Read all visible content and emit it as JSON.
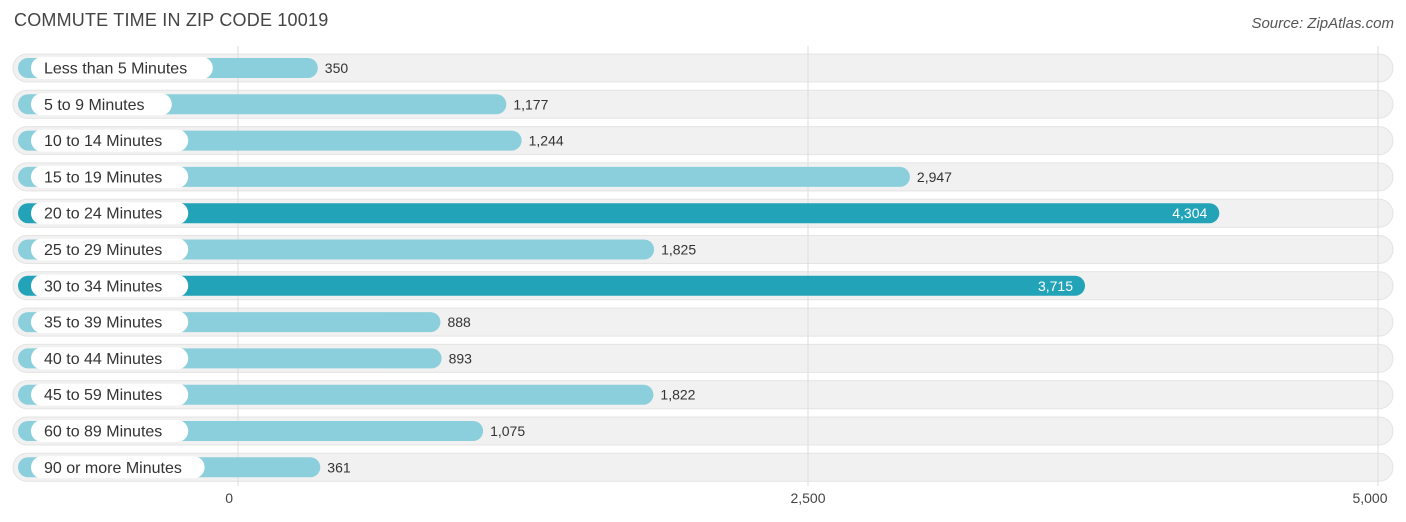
{
  "chart_data": {
    "type": "bar",
    "orientation": "horizontal",
    "title": "COMMUTE TIME IN ZIP CODE 10019",
    "source": "Source: ZipAtlas.com",
    "categories": [
      "Less than 5 Minutes",
      "5 to 9 Minutes",
      "10 to 14 Minutes",
      "15 to 19 Minutes",
      "20 to 24 Minutes",
      "25 to 29 Minutes",
      "30 to 34 Minutes",
      "35 to 39 Minutes",
      "40 to 44 Minutes",
      "45 to 59 Minutes",
      "60 to 89 Minutes",
      "90 or more Minutes"
    ],
    "values": [
      350,
      1177,
      1244,
      2947,
      4304,
      1825,
      3715,
      888,
      893,
      1822,
      1075,
      361
    ],
    "value_labels": [
      "350",
      "1,177",
      "1,244",
      "2,947",
      "4,304",
      "1,825",
      "3,715",
      "888",
      "893",
      "1,822",
      "1,075",
      "361"
    ],
    "xlim": [
      0,
      5000
    ],
    "ticks": [
      0,
      2500,
      5000
    ],
    "tick_labels": [
      "0",
      "2,500",
      "5,000"
    ],
    "grid": true,
    "colors": {
      "bar_light": "#8ccfdc",
      "bar_dark": "#23a3b8",
      "track": "#f1f1f1",
      "grid": "#dddddd"
    }
  }
}
